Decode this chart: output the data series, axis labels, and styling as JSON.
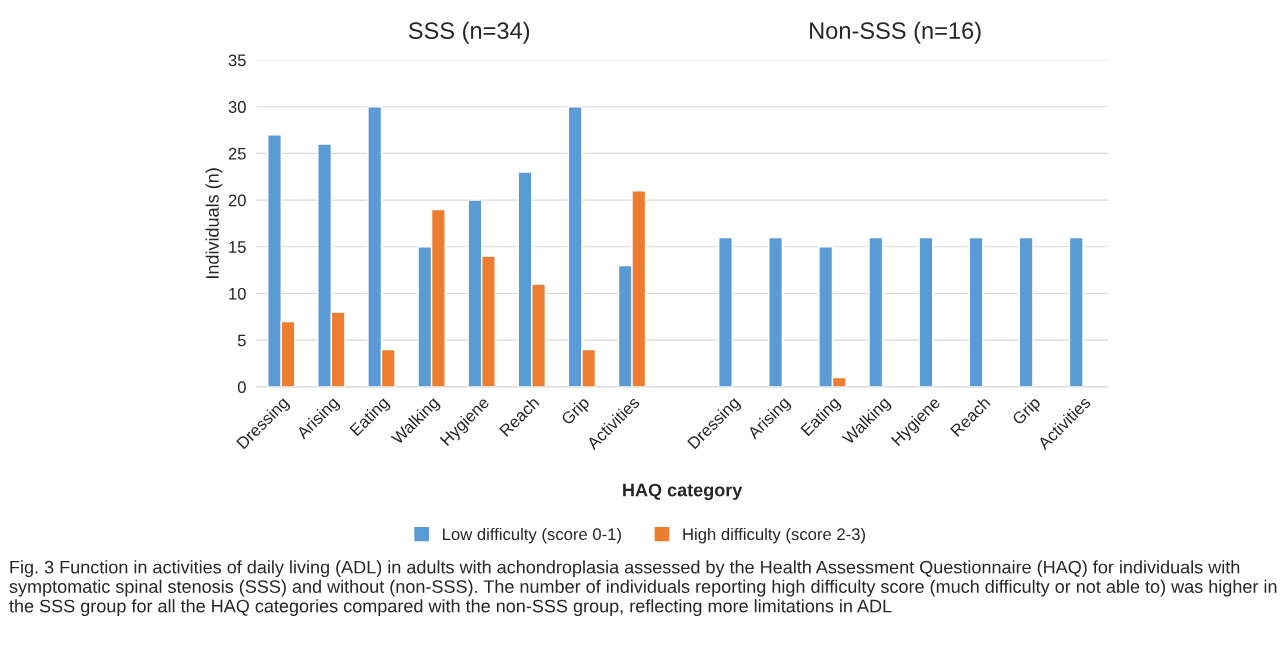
{
  "chart_data": {
    "type": "bar",
    "xlabel": "HAQ category",
    "ylabel": "Individuals (n)",
    "categories": [
      "Dressing",
      "Arising",
      "Eating",
      "Walking",
      "Hygiene",
      "Reach",
      "Grip",
      "Activities",
      null,
      "Dressing",
      "Arising",
      "Eating",
      "Walking",
      "Hygiene",
      "Reach",
      "Grip",
      "Activities"
    ],
    "series": [
      {
        "name": "Low difficulty (score 0-1)",
        "color": "#5b9bd5",
        "values": [
          27,
          26,
          30,
          15,
          20,
          23,
          30,
          13,
          null,
          16,
          16,
          15,
          16,
          16,
          16,
          16,
          16
        ]
      },
      {
        "name": "High difficulty (score 2-3)",
        "color": "#ed7d31",
        "values": [
          7,
          8,
          4,
          19,
          14,
          11,
          4,
          21,
          null,
          null,
          null,
          1,
          null,
          null,
          null,
          null,
          null
        ]
      }
    ],
    "ylim": [
      0,
      35
    ],
    "yticks": [
      0,
      5,
      10,
      15,
      20,
      25,
      30,
      35
    ],
    "grid": "y",
    "legend": "bottom",
    "annotations": [
      "SSS (n=34)",
      "Non-SSS (n=16)",
      "Fig. 3 Function in activities of daily living (ADL) in adults with achondroplasia assessed by the Health Assessment Questionnaire (HAQ) for individuals with symptomatic spinal stenosis (SSS) and without (non-SSS). The number of individuals reporting high difficulty score (much difficulty or not able to) was higher in the SSS group for all the HAQ categories compared with the non-SSS group, reflecting more limitations in ADL"
    ]
  }
}
